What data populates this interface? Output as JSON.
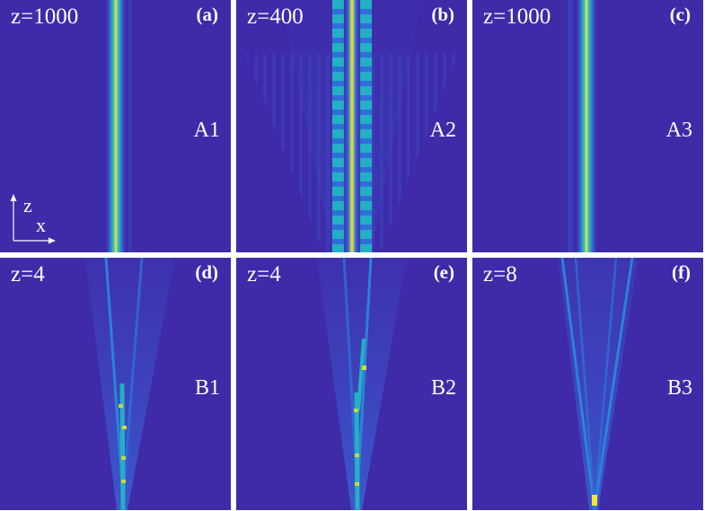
{
  "panels": [
    {
      "z": "z=1000",
      "tag": "(a)",
      "id": "A1"
    },
    {
      "z": "z=400",
      "tag": "(b)",
      "id": "A2"
    },
    {
      "z": "z=1000",
      "tag": "(c)",
      "id": "A3"
    },
    {
      "z": "z=4",
      "tag": "(d)",
      "id": "B1"
    },
    {
      "z": "z=4",
      "tag": "(e)",
      "id": "B2"
    },
    {
      "z": "z=8",
      "tag": "(f)",
      "id": "B3"
    }
  ],
  "axes": {
    "vertical": "z",
    "horizontal": "x"
  },
  "colors": {
    "background": "#3f2aa8",
    "beam_peak": "#f4e633",
    "beam_mid": "#21b8c9",
    "beam_low": "#2f70d8"
  }
}
